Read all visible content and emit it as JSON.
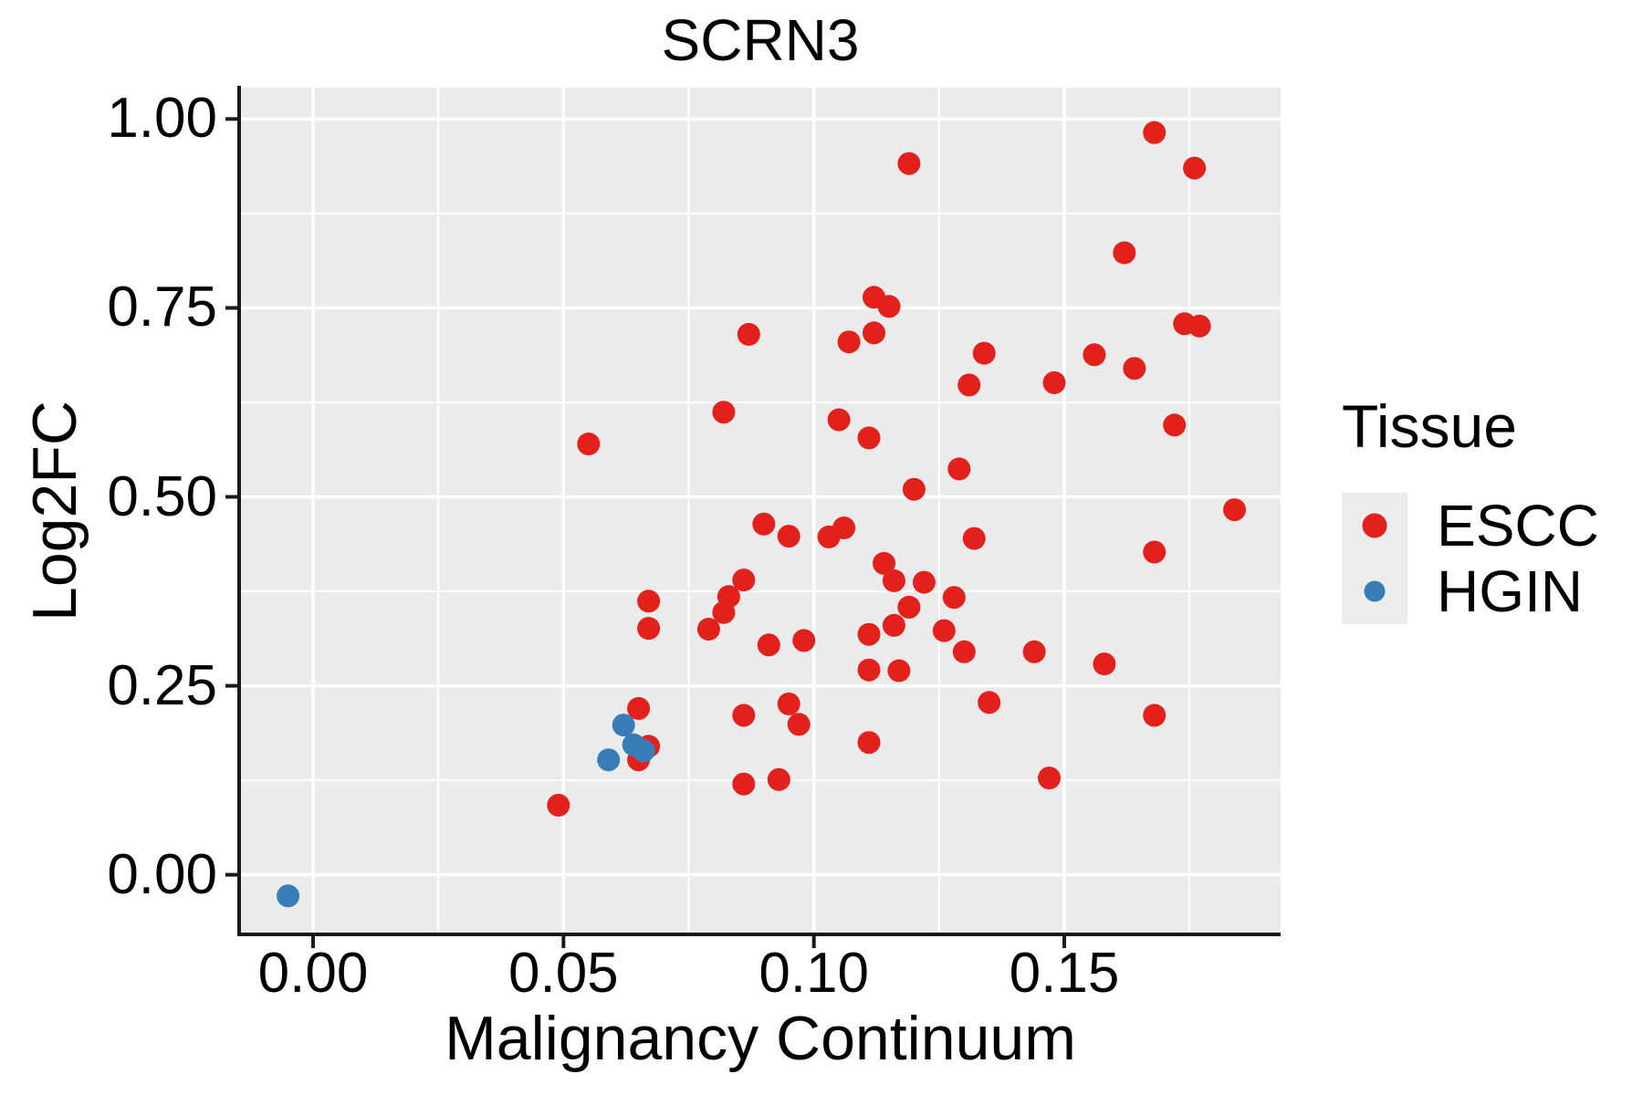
{
  "chart_data": {
    "type": "scatter",
    "title": "SCRN3",
    "xlabel": "Malignancy Continuum",
    "ylabel": "Log2FC",
    "xlim": [
      -0.0144,
      0.1932
    ],
    "ylim": [
      -0.0765,
      1.0415
    ],
    "x_ticks": {
      "values": [
        0.0,
        0.05,
        0.1,
        0.15
      ],
      "labels": [
        "0.00",
        "0.05",
        "0.10",
        "0.15"
      ]
    },
    "y_ticks": {
      "values": [
        0.0,
        0.25,
        0.5,
        0.75,
        1.0
      ],
      "labels": [
        "0.00",
        "0.25",
        "0.50",
        "0.75",
        "1.00"
      ]
    },
    "x_minor_gridlines": [
      0.025,
      0.075,
      0.125,
      0.175
    ],
    "y_minor_gridlines": [
      0.125,
      0.375,
      0.625,
      0.875
    ],
    "grid": "on",
    "panel_background": "#EBEBEB",
    "grid_color": "#FFFFFF",
    "axis_color": "#1a1a1a",
    "legend_position": "right",
    "legend": {
      "title": "Tissue",
      "entries": [
        {
          "label": "ESCC",
          "color": "#E3211C"
        },
        {
          "label": "HGIN",
          "color": "#377EB8"
        }
      ]
    },
    "series": [
      {
        "name": "ESCC",
        "color": "#E3211C",
        "points": [
          [
            0.168,
            0.982
          ],
          [
            0.119,
            0.941
          ],
          [
            0.176,
            0.935
          ],
          [
            0.162,
            0.823
          ],
          [
            0.112,
            0.764
          ],
          [
            0.115,
            0.752
          ],
          [
            0.087,
            0.715
          ],
          [
            0.107,
            0.705
          ],
          [
            0.112,
            0.717
          ],
          [
            0.174,
            0.729
          ],
          [
            0.177,
            0.726
          ],
          [
            0.134,
            0.69
          ],
          [
            0.131,
            0.648
          ],
          [
            0.148,
            0.651
          ],
          [
            0.156,
            0.688
          ],
          [
            0.164,
            0.67
          ],
          [
            0.082,
            0.612
          ],
          [
            0.105,
            0.602
          ],
          [
            0.111,
            0.578
          ],
          [
            0.129,
            0.537
          ],
          [
            0.12,
            0.51
          ],
          [
            0.172,
            0.595
          ],
          [
            0.184,
            0.483
          ],
          [
            0.055,
            0.57
          ],
          [
            0.067,
            0.362
          ],
          [
            0.067,
            0.326
          ],
          [
            0.079,
            0.325
          ],
          [
            0.082,
            0.347
          ],
          [
            0.083,
            0.368
          ],
          [
            0.086,
            0.39
          ],
          [
            0.065,
            0.22
          ],
          [
            0.049,
            0.092
          ],
          [
            0.09,
            0.464
          ],
          [
            0.095,
            0.448
          ],
          [
            0.103,
            0.447
          ],
          [
            0.106,
            0.459
          ],
          [
            0.132,
            0.445
          ],
          [
            0.168,
            0.427
          ],
          [
            0.114,
            0.412
          ],
          [
            0.116,
            0.389
          ],
          [
            0.122,
            0.387
          ],
          [
            0.128,
            0.367
          ],
          [
            0.119,
            0.354
          ],
          [
            0.116,
            0.33
          ],
          [
            0.126,
            0.323
          ],
          [
            0.13,
            0.295
          ],
          [
            0.111,
            0.318
          ],
          [
            0.098,
            0.31
          ],
          [
            0.091,
            0.304
          ],
          [
            0.144,
            0.295
          ],
          [
            0.158,
            0.279
          ],
          [
            0.111,
            0.271
          ],
          [
            0.117,
            0.27
          ],
          [
            0.135,
            0.228
          ],
          [
            0.168,
            0.211
          ],
          [
            0.086,
            0.211
          ],
          [
            0.095,
            0.226
          ],
          [
            0.097,
            0.199
          ],
          [
            0.111,
            0.175
          ],
          [
            0.093,
            0.126
          ],
          [
            0.147,
            0.128
          ],
          [
            0.086,
            0.12
          ],
          [
            0.067,
            0.17
          ],
          [
            0.065,
            0.152
          ]
        ]
      },
      {
        "name": "HGIN",
        "color": "#377EB8",
        "points": [
          [
            0.062,
            0.198
          ],
          [
            0.064,
            0.172
          ],
          [
            0.066,
            0.164
          ],
          [
            0.059,
            0.152
          ],
          [
            -0.005,
            -0.028
          ]
        ]
      }
    ]
  }
}
